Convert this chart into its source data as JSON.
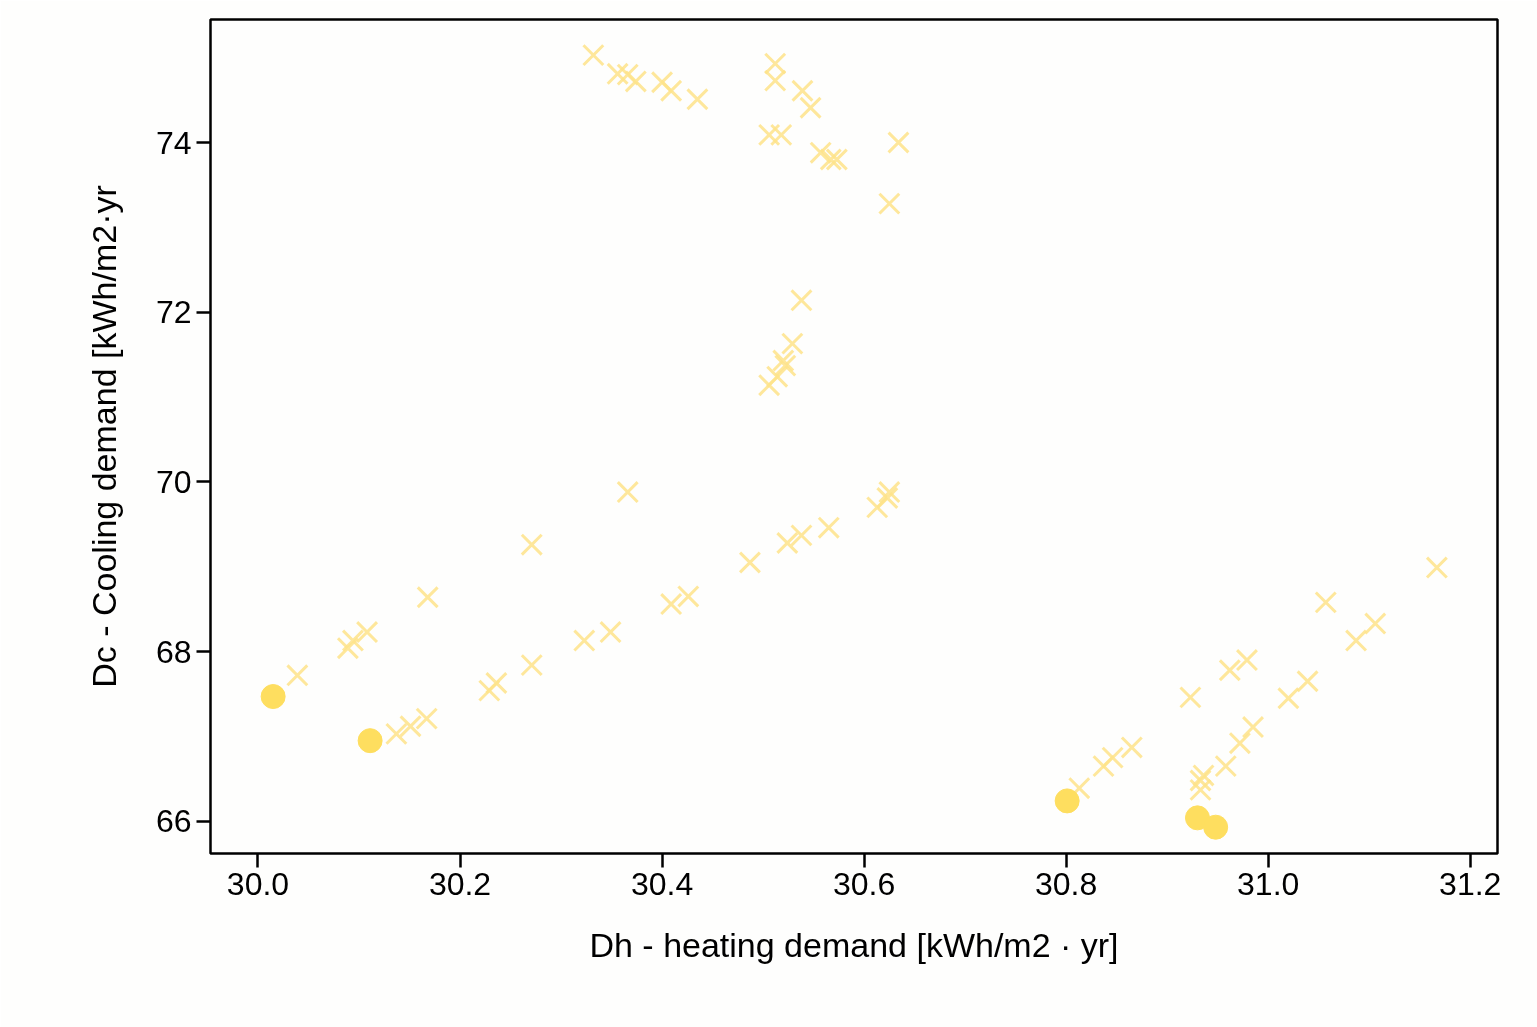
{
  "chart_data": {
    "type": "scatter",
    "xlabel": "Dh - heating demand [kWh/m2 · yr]",
    "ylabel": "Dc - Cooling demand [kWh/m2·yr",
    "xlim": [
      29.953,
      31.227
    ],
    "ylim": [
      65.62,
      75.45
    ],
    "xticks": [
      {
        "value": 30.0,
        "label": "30.0"
      },
      30.2,
      30.4,
      30.6,
      30.8,
      {
        "value": 31.0,
        "label": "31.0"
      },
      31.2
    ],
    "yticks": [
      66,
      68,
      70,
      72,
      74
    ],
    "grid": false,
    "series": [
      {
        "color": "#fee38a",
        "marker": "cross",
        "x": [
          30.332,
          30.356,
          30.366,
          30.374,
          30.4,
          30.409,
          30.435,
          30.512,
          30.512,
          30.539,
          30.547,
          30.506,
          30.518,
          30.557,
          30.567,
          30.573,
          30.634,
          30.625,
          30.538,
          30.529,
          30.52,
          30.522,
          30.514,
          30.506,
          30.366,
          30.271,
          30.487,
          30.524,
          30.538,
          30.565,
          30.613,
          30.623,
          30.625,
          30.168,
          30.108,
          30.094,
          30.089,
          30.039,
          30.271,
          30.323,
          30.349,
          30.409,
          30.426,
          30.229,
          30.236,
          30.167,
          30.151,
          30.137,
          30.813,
          30.837,
          30.846,
          30.865,
          30.923,
          30.962,
          30.979,
          30.933,
          30.933,
          30.936,
          30.958,
          30.972,
          30.985,
          31.02,
          31.039,
          31.087,
          31.106,
          31.057,
          31.167
        ],
        "values": [
          75.03,
          74.81,
          74.8,
          74.72,
          74.71,
          74.61,
          74.51,
          74.93,
          74.73,
          74.61,
          74.41,
          74.09,
          74.09,
          73.88,
          73.8,
          73.8,
          74.0,
          73.28,
          72.14,
          71.63,
          71.43,
          71.37,
          71.24,
          71.14,
          69.88,
          69.26,
          69.05,
          69.28,
          69.37,
          69.46,
          69.7,
          69.81,
          69.88,
          68.64,
          68.23,
          68.13,
          68.04,
          67.72,
          67.84,
          68.13,
          68.23,
          68.56,
          68.65,
          67.54,
          67.63,
          67.21,
          67.12,
          67.03,
          66.39,
          66.65,
          66.75,
          66.87,
          67.46,
          67.78,
          67.9,
          66.37,
          66.48,
          66.54,
          66.65,
          66.92,
          67.11,
          67.45,
          67.65,
          68.13,
          68.33,
          68.58,
          68.99
        ]
      },
      {
        "color": "#fede5f",
        "marker": "circle",
        "x": [
          30.015,
          30.111,
          30.801,
          30.93,
          30.948
        ],
        "values": [
          67.47,
          66.95,
          66.24,
          66.04,
          65.93
        ]
      }
    ]
  }
}
